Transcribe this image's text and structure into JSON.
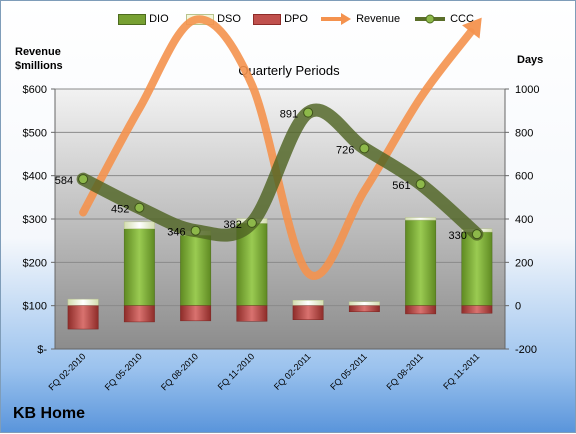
{
  "chart_data": {
    "type": "bar",
    "subtitle": "Quarterly Periods",
    "company": "KB Home",
    "left_axis_title": [
      "Revenue",
      "$millions"
    ],
    "right_axis_title": "Days",
    "left_ticks": [
      "$-",
      "$100",
      "$200",
      "$300",
      "$400",
      "$500",
      "$600"
    ],
    "left_ylim": [
      0,
      600
    ],
    "right_ticks": [
      "-200",
      "0",
      "200",
      "400",
      "600",
      "800",
      "1000"
    ],
    "right_ylim": [
      -200,
      1000
    ],
    "categories": [
      "FQ 02-2010",
      "FQ 05-2010",
      "FQ 08-2010",
      "FQ 11-2010",
      "FQ 02-2011",
      "FQ 05-2011",
      "FQ 08-2011",
      "FQ 11-2011"
    ],
    "series": [
      {
        "name": "DIO",
        "axis": "days",
        "kind": "stacked-bar",
        "color": "#77a032",
        "values": [
          0,
          355,
          325,
          380,
          0,
          0,
          395,
          340
        ]
      },
      {
        "name": "DSO",
        "axis": "days",
        "kind": "stacked-bar",
        "color": "#f2f7dc",
        "values": [
          30,
          32,
          22,
          22,
          25,
          18,
          12,
          15
        ]
      },
      {
        "name": "DPO",
        "axis": "days",
        "kind": "negative-bar",
        "color": "#c0504d",
        "values": [
          -108,
          -75,
          -70,
          -72,
          -65,
          -28,
          -38,
          -35
        ]
      },
      {
        "name": "Revenue",
        "axis": "revenue",
        "kind": "line",
        "color": "#f4924e",
        "values": [
          315,
          555,
          760,
          610,
          175,
          365,
          580,
          750
        ]
      },
      {
        "name": "CCC",
        "axis": "days",
        "kind": "line",
        "color": "#5a6e2a",
        "values": [
          584,
          452,
          346,
          382,
          891,
          726,
          561,
          330
        ]
      }
    ],
    "ccc_labels": [
      "584",
      "452",
      "346",
      "382",
      "891",
      "726",
      "561",
      "330"
    ],
    "grid": true
  }
}
